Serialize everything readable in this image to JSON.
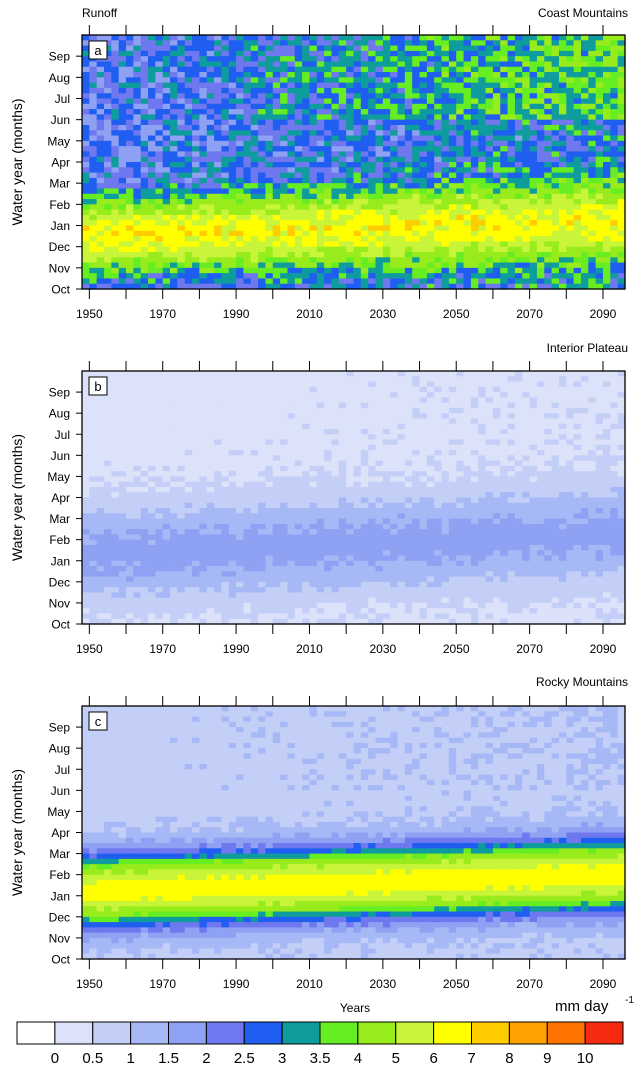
{
  "figure": {
    "variable_label": "Runoff",
    "xlabel": "Years",
    "ylabel": "Water year (months)",
    "colorbar_unit_main": "mm day",
    "colorbar_unit_exp": "-1"
  },
  "chart_data": [
    {
      "type": "heatmap",
      "panel": "a",
      "region": "Coast Mountains",
      "x_range": [
        1948,
        2096
      ],
      "x_ticks": [
        1950,
        1970,
        1990,
        2010,
        2030,
        2050,
        2070,
        2090
      ],
      "y_months": [
        "Oct",
        "Nov",
        "Dec",
        "Jan",
        "Feb",
        "Mar",
        "Apr",
        "May",
        "Jun",
        "Jul",
        "Aug",
        "Sep"
      ],
      "peak_month_start": 9.5,
      "peak_month_end": 8.8,
      "peak_value": 6.5,
      "winter_value": 2.3,
      "late_winter_value": 3.8
    },
    {
      "type": "heatmap",
      "panel": "b",
      "region": "Interior Plateau",
      "x_range": [
        1948,
        2096
      ],
      "x_ticks": [
        1950,
        1970,
        1990,
        2010,
        2030,
        2050,
        2070,
        2090
      ],
      "y_months": [
        "Oct",
        "Nov",
        "Dec",
        "Jan",
        "Feb",
        "Mar",
        "Apr",
        "May",
        "Jun",
        "Jul",
        "Aug",
        "Sep"
      ],
      "peak_month_start": 8.7,
      "peak_month_end": 7.7,
      "peak_value": 1.7,
      "winter_value": 0.3,
      "late_winter_value": 0.4
    },
    {
      "type": "heatmap",
      "panel": "c",
      "region": "Rocky Mountains",
      "x_range": [
        1948,
        2096
      ],
      "x_ticks": [
        1950,
        1970,
        1990,
        2010,
        2030,
        2050,
        2070,
        2090
      ],
      "y_months": [
        "Oct",
        "Nov",
        "Dec",
        "Jan",
        "Feb",
        "Mar",
        "Apr",
        "May",
        "Jun",
        "Jul",
        "Aug",
        "Sep"
      ],
      "peak_month_start": 8.8,
      "peak_month_end": 8.0,
      "peak_value": 6.5,
      "winter_value": 0.8,
      "late_winter_value": 1.0
    }
  ],
  "colorbar": {
    "labels": [
      "0",
      "0.5",
      "1",
      "1.5",
      "2",
      "2.5",
      "3",
      "3.5",
      "4",
      "5",
      "6",
      "7",
      "8",
      "9",
      "10"
    ],
    "levels": [
      0,
      0.5,
      1,
      1.5,
      2,
      2.5,
      3,
      3.5,
      4,
      5,
      6,
      7,
      8,
      9,
      10
    ],
    "colors": [
      "#ffffff",
      "#dce2fa",
      "#c4cff7",
      "#a6b8f5",
      "#8ea1f2",
      "#6f78ee",
      "#1f5ef0",
      "#0f9c9c",
      "#66ee22",
      "#99ec1c",
      "#c8f43a",
      "#ffff00",
      "#ffcc00",
      "#ffa100",
      "#ff7400",
      "#f62a10"
    ]
  }
}
